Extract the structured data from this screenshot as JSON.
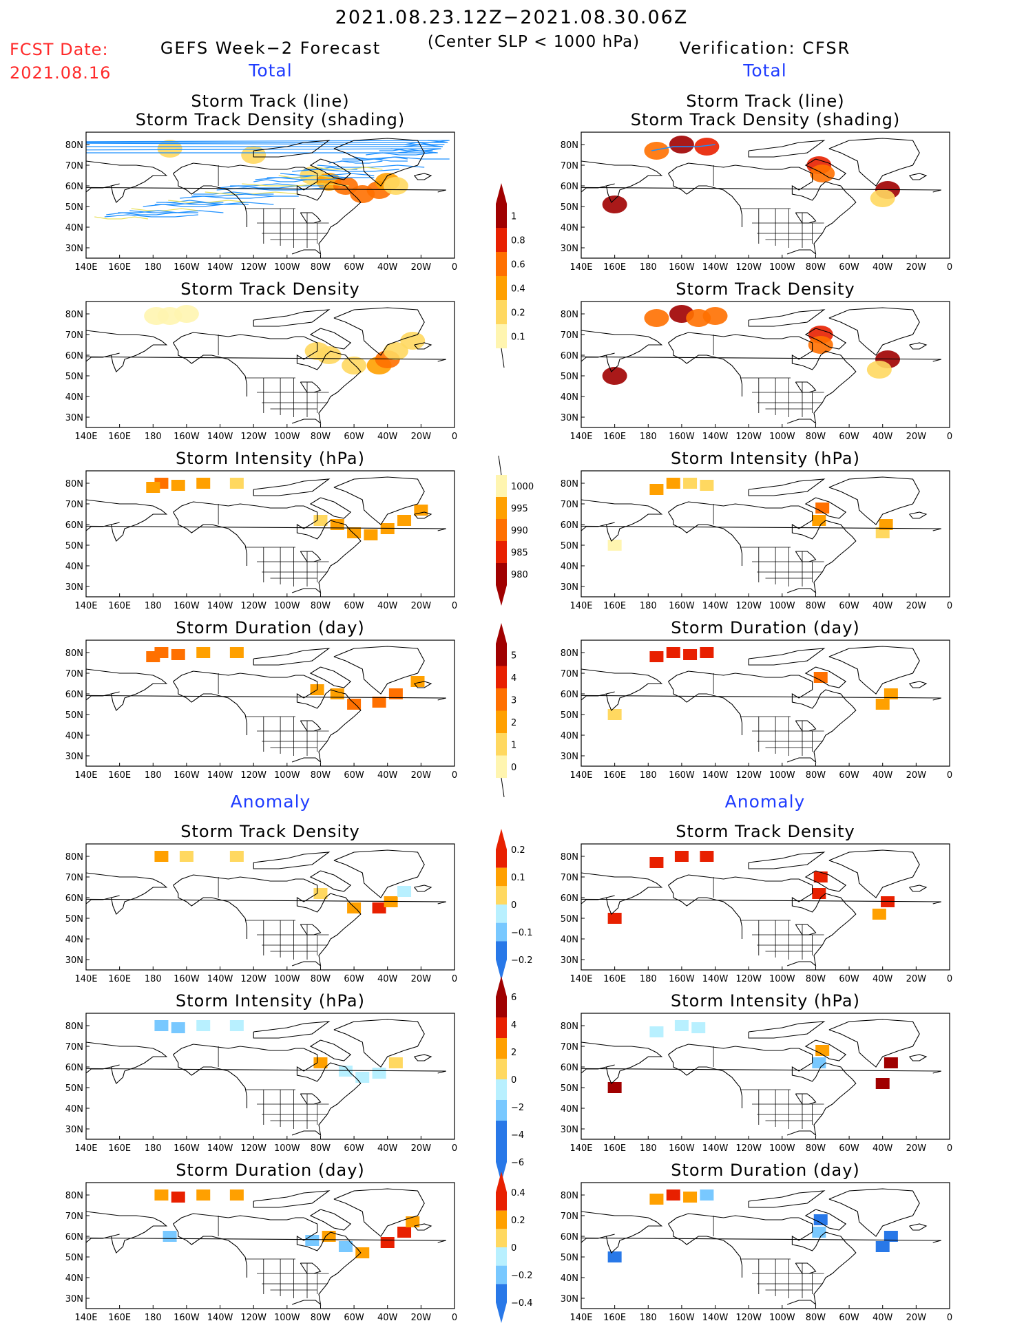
{
  "header": {
    "date_range": "2021.08.23.12Z−2021.08.30.06Z",
    "forecast_label": "GEFS Week−2 Forecast",
    "criterion": "(Center SLP < 1000 hPa)",
    "verification_label": "Verification: CFSR",
    "fcst_date_label": "FCST Date:",
    "fcst_date": "2021.08.16",
    "total_left": "Total",
    "total_right": "Total",
    "anomaly_left": "Anomaly",
    "anomaly_right": "Anomaly"
  },
  "panel_titles": {
    "track_line": "Storm Track (line)",
    "track_shading": "Storm Track Density (shading)",
    "density": "Storm Track Density",
    "intensity": "Storm Intensity (hPa)",
    "duration": "Storm Duration (day)"
  },
  "axes": {
    "lon_ticks": [
      "140E",
      "160E",
      "180",
      "160W",
      "140W",
      "120W",
      "100W",
      "80W",
      "60W",
      "40W",
      "20W",
      "0"
    ],
    "lat_ticks": [
      "80N",
      "70N",
      "60N",
      "50N",
      "40N",
      "30N"
    ]
  },
  "colorbars": {
    "density_total": [
      "1",
      "0.8",
      "0.6",
      "0.4",
      "0.2",
      "0.1"
    ],
    "intensity_total": [
      "1000",
      "995",
      "990",
      "985",
      "980"
    ],
    "duration_total": [
      "5",
      "4",
      "3",
      "2",
      "1",
      "0"
    ],
    "density_anom": [
      "0.2",
      "0.1",
      "0",
      "−0.1",
      "−0.2"
    ],
    "intensity_anom": [
      "6",
      "4",
      "2",
      "0",
      "−2",
      "−4",
      "−6"
    ],
    "duration_anom": [
      "0.4",
      "0.2",
      "0",
      "−0.2",
      "−0.4"
    ]
  },
  "colors": {
    "track_line": "#1e90ff",
    "track_line_secondary": "#e8e060",
    "pale_yellow": "#fff5b0",
    "yellow": "#ffd860",
    "orange": "#ffa000",
    "dark_orange": "#ff7000",
    "red": "#e82000",
    "dark_red": "#a00000",
    "light_blue": "#b8f0ff",
    "sky_blue": "#78c8ff",
    "blue": "#2878e8",
    "title_blue": "#1f3cff",
    "header_red": "#ff2a2a"
  },
  "chart_data": [
    {
      "type": "heatmap",
      "id": "fcst-track",
      "title": "Storm Track (line)",
      "subtitle": "Storm Track Density (shading)",
      "column": "GEFS Week−2 Forecast",
      "cells": [
        [
          -170,
          78,
          0.2
        ],
        [
          -120,
          75,
          0.2
        ],
        [
          -85,
          65,
          0.3
        ],
        [
          -75,
          62,
          0.4
        ],
        [
          -65,
          60,
          0.5
        ],
        [
          -55,
          56,
          0.6
        ],
        [
          -45,
          58,
          0.5
        ],
        [
          -40,
          62,
          0.4
        ],
        [
          -35,
          60,
          0.3
        ]
      ]
    },
    {
      "type": "heatmap",
      "id": "obs-track",
      "title": "Storm Track (line)",
      "subtitle": "Storm Track Density (shading)",
      "column": "Verification: CFSR",
      "cells": [
        [
          160,
          51,
          0.9
        ],
        [
          -175,
          77,
          0.5
        ],
        [
          -160,
          80,
          1.0
        ],
        [
          -145,
          79,
          0.8
        ],
        [
          -78,
          70,
          0.7
        ],
        [
          -76,
          66,
          0.6
        ],
        [
          -37,
          58,
          0.9
        ],
        [
          -40,
          54,
          0.3
        ]
      ]
    },
    {
      "type": "heatmap",
      "id": "fcst-density",
      "title": "Storm Track Density",
      "column": "GEFS Week−2 Forecast",
      "cells": [
        [
          -178,
          79,
          0.1
        ],
        [
          -170,
          79,
          0.1
        ],
        [
          -160,
          80,
          0.1
        ],
        [
          -82,
          62,
          0.2
        ],
        [
          -75,
          60,
          0.2
        ],
        [
          -60,
          55,
          0.3
        ],
        [
          -45,
          55,
          0.4
        ],
        [
          -40,
          58,
          0.5
        ],
        [
          -35,
          62,
          0.3
        ],
        [
          -25,
          67,
          0.2
        ]
      ]
    },
    {
      "type": "heatmap",
      "id": "obs-density",
      "title": "Storm Track Density",
      "column": "Verification: CFSR",
      "cells": [
        [
          160,
          50,
          0.9
        ],
        [
          -175,
          78,
          0.6
        ],
        [
          -160,
          80,
          0.9
        ],
        [
          -150,
          78,
          0.5
        ],
        [
          -140,
          79,
          0.6
        ],
        [
          -77,
          70,
          0.8
        ],
        [
          -77,
          65,
          0.6
        ],
        [
          -37,
          58,
          1.0
        ],
        [
          -42,
          53,
          0.3
        ]
      ]
    },
    {
      "type": "heatmap",
      "id": "fcst-intensity",
      "title": "Storm Intensity (hPa)",
      "column": "GEFS Week−2 Forecast",
      "cells": [
        [
          -175,
          80,
          990
        ],
        [
          -165,
          79,
          992
        ],
        [
          -180,
          78,
          992
        ],
        [
          -150,
          80,
          995
        ],
        [
          -130,
          80,
          996
        ],
        [
          -80,
          62,
          997
        ],
        [
          -70,
          60,
          994
        ],
        [
          -60,
          56,
          994
        ],
        [
          -50,
          55,
          993
        ],
        [
          -40,
          58,
          993
        ],
        [
          -30,
          62,
          994
        ],
        [
          -20,
          67,
          995
        ]
      ]
    },
    {
      "type": "heatmap",
      "id": "obs-intensity",
      "title": "Storm Intensity (hPa)",
      "column": "Verification: CFSR",
      "cells": [
        [
          160,
          50,
          998
        ],
        [
          -175,
          77,
          994
        ],
        [
          -165,
          80,
          993
        ],
        [
          -155,
          80,
          996
        ],
        [
          -145,
          79,
          996
        ],
        [
          -76,
          68,
          990
        ],
        [
          -78,
          62,
          993
        ],
        [
          -40,
          56,
          997
        ],
        [
          -38,
          60,
          995
        ]
      ]
    },
    {
      "type": "heatmap",
      "id": "fcst-duration",
      "title": "Storm Duration (day)",
      "column": "GEFS Week−2 Forecast",
      "cells": [
        [
          -175,
          80,
          3.5
        ],
        [
          -165,
          79,
          3
        ],
        [
          -180,
          78,
          3
        ],
        [
          -150,
          80,
          2.5
        ],
        [
          -130,
          80,
          2.5
        ],
        [
          -82,
          62,
          2.5
        ],
        [
          -70,
          60,
          2.5
        ],
        [
          -60,
          55,
          3
        ],
        [
          -45,
          56,
          3.5
        ],
        [
          -35,
          60,
          3
        ],
        [
          -22,
          66,
          2.5
        ]
      ]
    },
    {
      "type": "heatmap",
      "id": "obs-duration",
      "title": "Storm Duration (day)",
      "column": "Verification: CFSR",
      "cells": [
        [
          160,
          50,
          1.5
        ],
        [
          -175,
          78,
          4.5
        ],
        [
          -165,
          80,
          4.5
        ],
        [
          -155,
          79,
          4.5
        ],
        [
          -145,
          80,
          4
        ],
        [
          -77,
          68,
          3
        ],
        [
          -40,
          55,
          2
        ],
        [
          -35,
          60,
          2
        ]
      ]
    },
    {
      "type": "heatmap",
      "id": "fcst-density-anom",
      "title": "Storm Track Density",
      "section": "Anomaly",
      "column": "GEFS Week−2 Forecast",
      "cells": [
        [
          -175,
          80,
          0.1
        ],
        [
          -160,
          80,
          0.05
        ],
        [
          -130,
          80,
          0.05
        ],
        [
          -80,
          62,
          0.05
        ],
        [
          -60,
          55,
          0.1
        ],
        [
          -45,
          55,
          0.15
        ],
        [
          -38,
          58,
          0.1
        ],
        [
          -30,
          63,
          -0.05
        ]
      ]
    },
    {
      "type": "heatmap",
      "id": "obs-density-anom",
      "title": "Storm Track Density",
      "section": "Anomaly",
      "column": "Verification: CFSR",
      "cells": [
        [
          160,
          50,
          0.2
        ],
        [
          -175,
          77,
          0.2
        ],
        [
          -160,
          80,
          0.2
        ],
        [
          -145,
          80,
          0.2
        ],
        [
          -77,
          70,
          0.2
        ],
        [
          -78,
          62,
          0.15
        ],
        [
          -37,
          58,
          0.2
        ],
        [
          -42,
          52,
          0.1
        ]
      ]
    },
    {
      "type": "heatmap",
      "id": "fcst-intensity-anom",
      "title": "Storm Intensity (hPa)",
      "section": "Anomaly",
      "column": "GEFS Week−2 Forecast",
      "cells": [
        [
          -175,
          80,
          -3
        ],
        [
          -165,
          79,
          -2
        ],
        [
          -150,
          80,
          -1
        ],
        [
          -130,
          80,
          -0.5
        ],
        [
          -80,
          62,
          2
        ],
        [
          -65,
          58,
          -1
        ],
        [
          -55,
          55,
          -1
        ],
        [
          -45,
          57,
          -1
        ],
        [
          -35,
          62,
          1
        ]
      ]
    },
    {
      "type": "heatmap",
      "id": "obs-intensity-anom",
      "title": "Storm Intensity (hPa)",
      "section": "Anomaly",
      "column": "Verification: CFSR",
      "cells": [
        [
          160,
          50,
          5
        ],
        [
          -175,
          77,
          -1
        ],
        [
          -160,
          80,
          -1
        ],
        [
          -150,
          79,
          -1
        ],
        [
          -76,
          68,
          3
        ],
        [
          -78,
          62,
          -2
        ],
        [
          -40,
          52,
          6
        ],
        [
          -35,
          62,
          5
        ]
      ]
    },
    {
      "type": "heatmap",
      "id": "fcst-duration-anom",
      "title": "Storm Duration (day)",
      "section": "Anomaly",
      "column": "GEFS Week−2 Forecast",
      "cells": [
        [
          -175,
          80,
          0.3
        ],
        [
          -165,
          79,
          0.4
        ],
        [
          -150,
          80,
          0.3
        ],
        [
          -130,
          80,
          0.3
        ],
        [
          -170,
          60,
          -0.3
        ],
        [
          -85,
          58,
          -0.3
        ],
        [
          -75,
          60,
          0.3
        ],
        [
          -65,
          55,
          -0.3
        ],
        [
          -55,
          52,
          0.3
        ],
        [
          -40,
          57,
          0.4
        ],
        [
          -30,
          62,
          0.4
        ],
        [
          -25,
          67,
          0.3
        ]
      ]
    },
    {
      "type": "heatmap",
      "id": "obs-duration-anom",
      "title": "Storm Duration (day)",
      "section": "Anomaly",
      "column": "Verification: CFSR",
      "cells": [
        [
          160,
          50,
          -0.4
        ],
        [
          -175,
          78,
          0.3
        ],
        [
          -165,
          80,
          0.4
        ],
        [
          -155,
          79,
          0.3
        ],
        [
          -145,
          80,
          -0.2
        ],
        [
          -77,
          68,
          -0.4
        ],
        [
          -78,
          62,
          -0.3
        ],
        [
          -40,
          55,
          -0.4
        ],
        [
          -35,
          60,
          -0.4
        ]
      ]
    }
  ]
}
